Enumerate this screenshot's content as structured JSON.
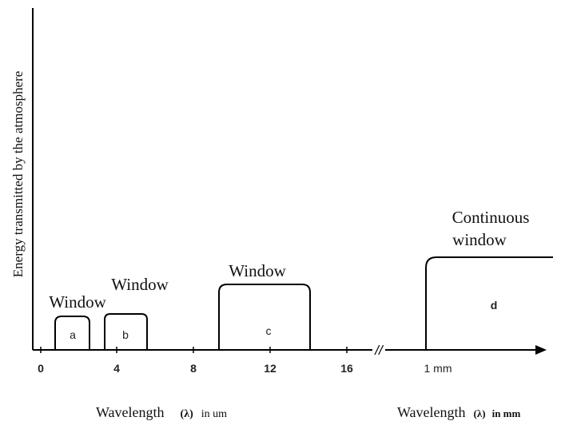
{
  "diagram": {
    "y_axis_label": "Energy transmitted by the atmosphere",
    "x_ticks": [
      "0",
      "4",
      "8",
      "12",
      "16"
    ],
    "x_tick_mm": "1 mm",
    "x_label_um": {
      "prefix": "Wavelength",
      "symbol": "(λ)",
      "unit": "in um"
    },
    "x_label_mm": {
      "prefix": "Wavelength",
      "symbol": "(λ)",
      "unit": "in mm"
    },
    "windows": [
      {
        "letter": "a",
        "title": "Window"
      },
      {
        "letter": "b",
        "title": "Window"
      },
      {
        "letter": "c",
        "title": "Window"
      },
      {
        "letter": "d",
        "title_line1": "Continuous",
        "title_line2": "window"
      }
    ],
    "axis_break": "//"
  }
}
